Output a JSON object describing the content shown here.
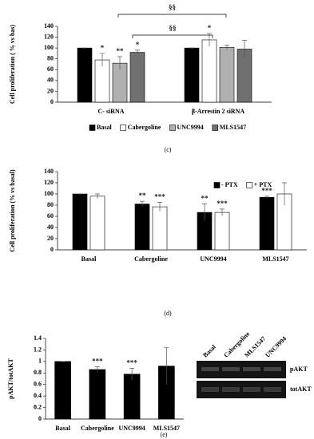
{
  "chart_data": [
    {
      "type": "bar",
      "caption": "(c)",
      "y_label": "Cell proliferation ( % vs bas)",
      "categories": [
        "C- siRNA",
        "β-Arrestin 2 siRNA"
      ],
      "series": [
        {
          "name": "Basal",
          "color": "#000000",
          "values": [
            100,
            100
          ],
          "errors": [
            0,
            0
          ],
          "significance": [
            null,
            null
          ]
        },
        {
          "name": "Cabergoline",
          "color": "#ffffff",
          "values": [
            78,
            115
          ],
          "errors": [
            12,
            12
          ],
          "significance": [
            "*",
            "*"
          ]
        },
        {
          "name": "UNC9994",
          "color": "#b0b0b0",
          "values": [
            72,
            101
          ],
          "errors": [
            12,
            4
          ],
          "significance": [
            "**",
            null
          ]
        },
        {
          "name": "MLS1547",
          "color": "#707070",
          "values": [
            92,
            98
          ],
          "errors": [
            4,
            16
          ],
          "significance": [
            "*",
            null
          ]
        }
      ],
      "brackets": [
        {
          "label": "§§"
        },
        {
          "label": "§§"
        }
      ],
      "ylim": [
        0,
        140
      ],
      "yticks": [
        0,
        20,
        40,
        60,
        80,
        100,
        120,
        140
      ],
      "legend": "bottom"
    },
    {
      "type": "bar",
      "caption": "(d)",
      "y_label": "Cell proliferation (% vs basal)",
      "categories": [
        "Basal",
        "Cabergoline",
        "UNC9994",
        "MLS1547"
      ],
      "series": [
        {
          "name": "- PTX",
          "color": "#000000",
          "values": [
            100,
            82,
            67,
            94
          ],
          "errors": [
            0,
            5,
            15,
            2
          ],
          "significance": [
            null,
            "**",
            "**",
            "***"
          ]
        },
        {
          "name": "+ PTX",
          "color": "#ffffff",
          "values": [
            96,
            77,
            67,
            100
          ],
          "errors": [
            4,
            8,
            6,
            20
          ],
          "significance": [
            null,
            "***",
            "***",
            null
          ]
        }
      ],
      "ylim": [
        0,
        140
      ],
      "yticks": [
        0,
        20,
        40,
        60,
        80,
        100,
        120,
        140
      ],
      "legend": "top-right"
    },
    {
      "type": "bar",
      "caption": "(e)",
      "y_label": "pAKT/totAKT",
      "categories": [
        "Basal",
        "Cabergoline",
        "UNC9994",
        "MLS1547"
      ],
      "series": [
        {
          "color": "#000000",
          "values": [
            1,
            0.86,
            0.78,
            0.92
          ],
          "errors": [
            0,
            0.05,
            0.1,
            0.32
          ],
          "significance": [
            null,
            "***",
            "***",
            null
          ]
        }
      ],
      "ylim": [
        0,
        1.4
      ],
      "yticks": [
        0,
        0.2,
        0.4,
        0.6,
        0.8,
        1,
        1.2,
        1.4
      ],
      "legend": "none"
    }
  ],
  "blot": {
    "lanes": [
      "Basal",
      "Cabergoline",
      "MLS1547",
      "UNC9994"
    ],
    "bands": [
      "pAKT",
      "totAKT"
    ]
  }
}
